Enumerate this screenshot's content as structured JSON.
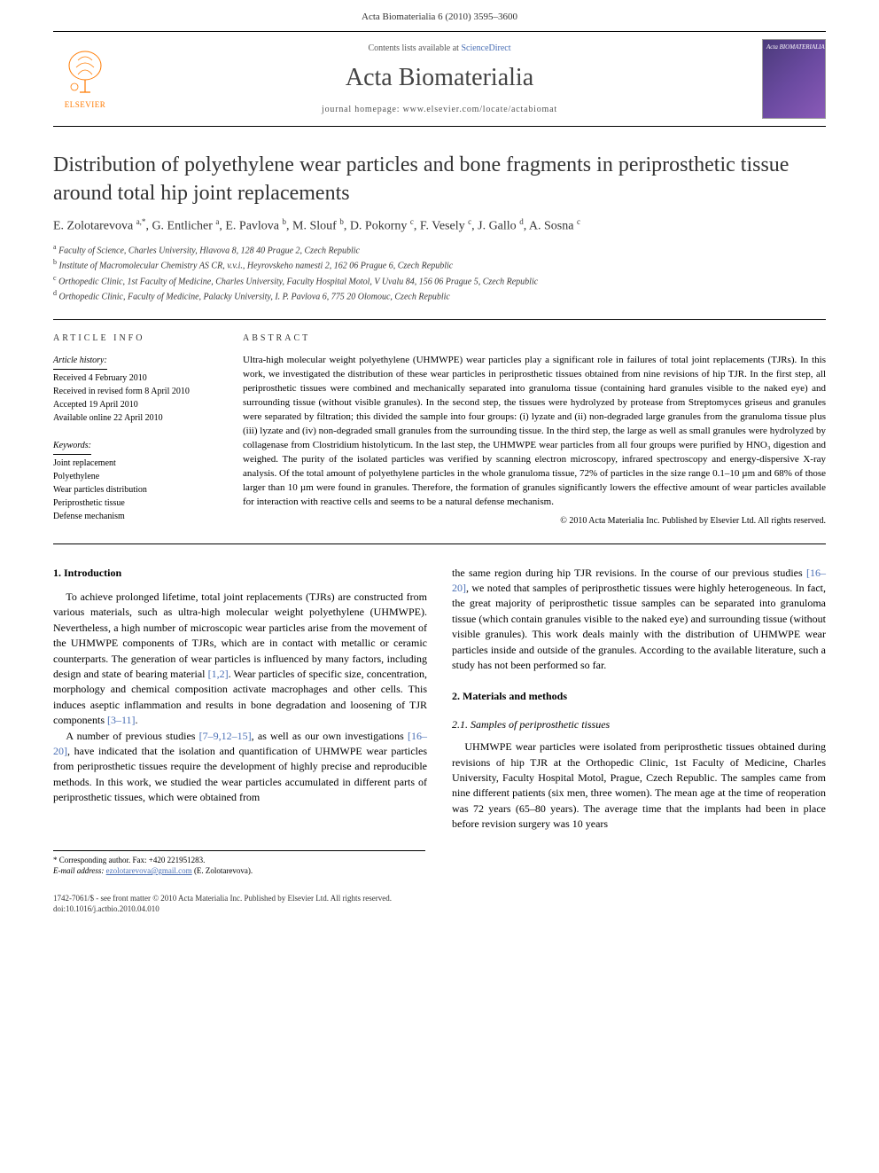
{
  "header": {
    "running_head": "Acta Biomaterialia 6 (2010) 3595–3600"
  },
  "masthead": {
    "contents_prefix": "Contents lists available at ",
    "contents_link": "ScienceDirect",
    "journal": "Acta Biomaterialia",
    "homepage_prefix": "journal homepage: ",
    "homepage_url": "www.elsevier.com/locate/actabiomat",
    "publisher_label": "ELSEVIER",
    "cover_title": "Acta BIOMATERIALIA"
  },
  "article": {
    "title": "Distribution of polyethylene wear particles and bone fragments in periprosthetic tissue around total hip joint replacements",
    "authors_html": "E. Zolotarevova <sup>a,*</sup>, G. Entlicher <sup>a</sup>, E. Pavlova <sup>b</sup>, M. Slouf <sup>b</sup>, D. Pokorny <sup>c</sup>, F. Vesely <sup>c</sup>, J. Gallo <sup>d</sup>, A. Sosna <sup>c</sup>",
    "affiliations": {
      "a": "Faculty of Science, Charles University, Hlavova 8, 128 40 Prague 2, Czech Republic",
      "b": "Institute of Macromolecular Chemistry AS CR, v.v.i., Heyrovskeho namesti 2, 162 06 Prague 6, Czech Republic",
      "c": "Orthopedic Clinic, 1st Faculty of Medicine, Charles University, Faculty Hospital Motol, V Uvalu 84, 156 06 Prague 5, Czech Republic",
      "d": "Orthopedic Clinic, Faculty of Medicine, Palacky University, I. P. Pavlova 6, 775 20 Olomouc, Czech Republic"
    }
  },
  "info": {
    "heading": "ARTICLE INFO",
    "history_label": "Article history:",
    "history": [
      "Received 4 February 2010",
      "Received in revised form 8 April 2010",
      "Accepted 19 April 2010",
      "Available online 22 April 2010"
    ],
    "keywords_label": "Keywords:",
    "keywords": [
      "Joint replacement",
      "Polyethylene",
      "Wear particles distribution",
      "Periprosthetic tissue",
      "Defense mechanism"
    ]
  },
  "abstract": {
    "heading": "ABSTRACT",
    "text": "Ultra-high molecular weight polyethylene (UHMWPE) wear particles play a significant role in failures of total joint replacements (TJRs). In this work, we investigated the distribution of these wear particles in periprosthetic tissues obtained from nine revisions of hip TJR. In the first step, all periprosthetic tissues were combined and mechanically separated into granuloma tissue (containing hard granules visible to the naked eye) and surrounding tissue (without visible granules). In the second step, the tissues were hydrolyzed by protease from Streptomyces griseus and granules were separated by filtration; this divided the sample into four groups: (i) lyzate and (ii) non-degraded large granules from the granuloma tissue plus (iii) lyzate and (iv) non-degraded small granules from the surrounding tissue. In the third step, the large as well as small granules were hydrolyzed by collagenase from Clostridium histolyticum. In the last step, the UHMWPE wear particles from all four groups were purified by HNO₃ digestion and weighed. The purity of the isolated particles was verified by scanning electron microscopy, infrared spectroscopy and energy-dispersive X-ray analysis. Of the total amount of polyethylene particles in the whole granuloma tissue, 72% of particles in the size range 0.1–10 µm and 68% of those larger than 10 µm were found in granules. Therefore, the formation of granules significantly lowers the effective amount of wear particles available for interaction with reactive cells and seems to be a natural defense mechanism.",
    "copyright": "© 2010 Acta Materialia Inc. Published by Elsevier Ltd. All rights reserved."
  },
  "body": {
    "s1_heading": "1. Introduction",
    "s1_p1": "To achieve prolonged lifetime, total joint replacements (TJRs) are constructed from various materials, such as ultra-high molecular weight polyethylene (UHMWPE). Nevertheless, a high number of microscopic wear particles arise from the movement of the UHMWPE components of TJRs, which are in contact with metallic or ceramic counterparts. The generation of wear particles is influenced by many factors, including design and state of bearing material [1,2]. Wear particles of specific size, concentration, morphology and chemical composition activate macrophages and other cells. This induces aseptic inflammation and results in bone degradation and loosening of TJR components [3–11].",
    "s1_p2": "A number of previous studies [7–9,12–15], as well as our own investigations [16–20], have indicated that the isolation and quantification of UHMWPE wear particles from periprosthetic tissues require the development of highly precise and reproducible methods. In this work, we studied the wear particles accumulated in different parts of periprosthetic tissues, which were obtained from",
    "s1_p3": "the same region during hip TJR revisions. In the course of our previous studies [16–20], we noted that samples of periprosthetic tissues were highly heterogeneous. In fact, the great majority of periprosthetic tissue samples can be separated into granuloma tissue (which contain granules visible to the naked eye) and surrounding tissue (without visible granules). This work deals mainly with the distribution of UHMWPE wear particles inside and outside of the granules. According to the available literature, such a study has not been performed so far.",
    "s2_heading": "2. Materials and methods",
    "s2_1_heading": "2.1. Samples of periprosthetic tissues",
    "s2_1_p1": "UHMWPE wear particles were isolated from periprosthetic tissues obtained during revisions of hip TJR at the Orthopedic Clinic, 1st Faculty of Medicine, Charles University, Faculty Hospital Motol, Prague, Czech Republic. The samples came from nine different patients (six men, three women). The mean age at the time of reoperation was 72 years (65–80 years). The average time that the implants had been in place before revision surgery was 10 years"
  },
  "footnote": {
    "corr": "* Corresponding author. Fax: +420 221951283.",
    "email_label": "E-mail address:",
    "email": "ezolotarevova@gmail.com",
    "email_attribution": "(E. Zolotarevova)."
  },
  "footer": {
    "issn_line": "1742-7061/$ - see front matter © 2010 Acta Materialia Inc. Published by Elsevier Ltd. All rights reserved.",
    "doi": "doi:10.1016/j.actbio.2010.04.010"
  },
  "colors": {
    "link": "#4a6fb5",
    "elsevier_orange": "#ff7a00"
  }
}
